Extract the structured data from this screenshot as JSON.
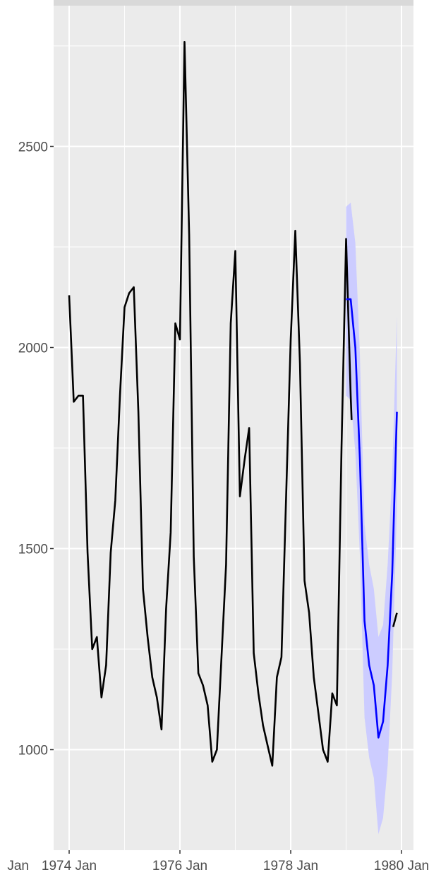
{
  "chart_data": {
    "type": "line",
    "title": "",
    "xlabel": "",
    "ylabel": "",
    "x_ticks": [
      {
        "label": "Jan",
        "value": 1972.0
      },
      {
        "label": "1974 Jan",
        "value": 1974.0
      },
      {
        "label": "1976 Jan",
        "value": 1976.0
      },
      {
        "label": "1978 Jan",
        "value": 1978.0
      },
      {
        "label": "1980 Jan",
        "value": 1980.0
      }
    ],
    "y_ticks": [
      1000,
      1500,
      2000,
      2500
    ],
    "xlim": [
      1974.0,
      1980.0
    ],
    "ylim": [
      750,
      2850
    ],
    "grid": true,
    "background": "#ebebeb",
    "series": [
      {
        "role": "observed",
        "color": "#000000",
        "points": [
          [
            1974.0,
            2130
          ],
          [
            1974.083,
            1865
          ],
          [
            1974.167,
            1880
          ],
          [
            1974.25,
            1880
          ],
          [
            1974.333,
            1490
          ],
          [
            1974.417,
            1250
          ],
          [
            1974.5,
            1280
          ],
          [
            1974.583,
            1130
          ],
          [
            1974.667,
            1210
          ],
          [
            1974.75,
            1490
          ],
          [
            1974.833,
            1620
          ],
          [
            1974.917,
            1880
          ],
          [
            1975.0,
            2100
          ],
          [
            1975.083,
            2135
          ],
          [
            1975.167,
            2150
          ],
          [
            1975.25,
            1840
          ],
          [
            1975.333,
            1400
          ],
          [
            1975.417,
            1280
          ],
          [
            1975.5,
            1180
          ],
          [
            1975.583,
            1130
          ],
          [
            1975.667,
            1050
          ],
          [
            1975.75,
            1350
          ],
          [
            1975.833,
            1540
          ],
          [
            1975.917,
            2060
          ],
          [
            1976.0,
            2020
          ],
          [
            1976.083,
            2760
          ],
          [
            1976.167,
            2280
          ],
          [
            1976.25,
            1480
          ],
          [
            1976.333,
            1190
          ],
          [
            1976.417,
            1160
          ],
          [
            1976.5,
            1110
          ],
          [
            1976.583,
            970
          ],
          [
            1976.667,
            1000
          ],
          [
            1976.75,
            1230
          ],
          [
            1976.833,
            1460
          ],
          [
            1976.917,
            2060
          ],
          [
            1977.0,
            2240
          ],
          [
            1977.083,
            1630
          ],
          [
            1977.167,
            1720
          ],
          [
            1977.25,
            1800
          ],
          [
            1977.333,
            1240
          ],
          [
            1977.417,
            1140
          ],
          [
            1977.5,
            1060
          ],
          [
            1977.583,
            1010
          ],
          [
            1977.667,
            960
          ],
          [
            1977.75,
            1180
          ],
          [
            1977.833,
            1230
          ],
          [
            1977.917,
            1630
          ],
          [
            1978.0,
            2020
          ],
          [
            1978.083,
            2290
          ],
          [
            1978.167,
            1960
          ],
          [
            1978.25,
            1420
          ],
          [
            1978.333,
            1340
          ],
          [
            1978.417,
            1180
          ],
          [
            1978.5,
            1090
          ],
          [
            1978.583,
            1000
          ],
          [
            1978.667,
            970
          ],
          [
            1978.75,
            1140
          ],
          [
            1978.833,
            1110
          ],
          [
            1978.917,
            1750
          ],
          [
            1979.0,
            2270
          ],
          [
            1979.083,
            1880
          ],
          [
            1979.1,
            1820
          ]
        ]
      },
      {
        "role": "observed-tail",
        "color": "#000000",
        "points": [
          [
            1979.85,
            1305
          ],
          [
            1979.917,
            1340
          ]
        ]
      },
      {
        "role": "forecast",
        "color": "#0000ff",
        "points": [
          [
            1979.0,
            2120
          ],
          [
            1979.083,
            2120
          ],
          [
            1979.167,
            2000
          ],
          [
            1979.25,
            1720
          ],
          [
            1979.333,
            1320
          ],
          [
            1979.417,
            1210
          ],
          [
            1979.5,
            1160
          ],
          [
            1979.583,
            1030
          ],
          [
            1979.667,
            1070
          ],
          [
            1979.75,
            1210
          ],
          [
            1979.833,
            1440
          ],
          [
            1979.917,
            1840
          ]
        ],
        "lower": [
          1880,
          1870,
          1740,
          1480,
          1080,
          980,
          930,
          790,
          830,
          960,
          1190,
          1600
        ],
        "upper": [
          2350,
          2360,
          2260,
          1980,
          1560,
          1460,
          1400,
          1280,
          1310,
          1460,
          1690,
          2080
        ],
        "band_color": "#ccccff"
      }
    ]
  }
}
